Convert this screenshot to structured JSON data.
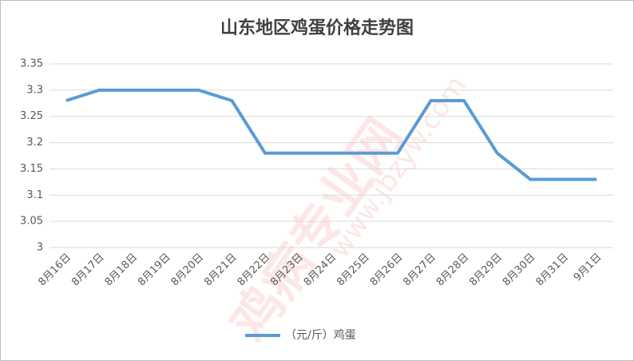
{
  "chart_data": {
    "type": "line",
    "title": "山东地区鸡蛋价格走势图",
    "watermark": "鸡病专业网",
    "watermark_url": "www.jbzyw.com",
    "categories": [
      "8月16日",
      "8月17日",
      "8月18日",
      "8月19日",
      "8月20日",
      "8月21日",
      "8月22日",
      "8月23日",
      "8月24日",
      "8月25日",
      "8月26日",
      "8月27日",
      "8月28日",
      "8月29日",
      "8月30日",
      "8月31日",
      "9月1日"
    ],
    "series": [
      {
        "name": "（元/斤）鸡蛋",
        "color": "#5b9bd5",
        "values": [
          3.28,
          3.3,
          3.3,
          3.3,
          3.3,
          3.28,
          3.18,
          3.18,
          3.18,
          3.18,
          3.18,
          3.28,
          3.28,
          3.18,
          3.13,
          3.13,
          3.13
        ]
      }
    ],
    "ylim": [
      3,
      3.35
    ],
    "yticks": [
      3,
      3.05,
      3.1,
      3.15,
      3.2,
      3.25,
      3.3,
      3.35
    ],
    "grid": true,
    "legend": "bottom"
  }
}
